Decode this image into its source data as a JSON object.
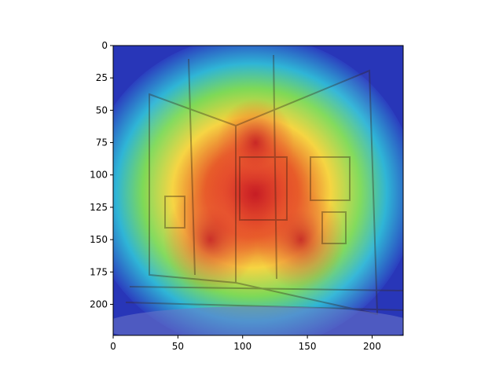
{
  "chart_data": {
    "type": "heatmap",
    "description_visible_text": "",
    "title": "",
    "xlabel": "",
    "ylabel": "",
    "xlim": [
      0,
      224
    ],
    "ylim": [
      224,
      0
    ],
    "x_ticks": [
      0,
      50,
      100,
      150,
      200
    ],
    "y_ticks": [
      0,
      25,
      50,
      75,
      100,
      125,
      150,
      175,
      200
    ],
    "colormap": "jet",
    "background_image": "building-facade",
    "hotspots": [
      {
        "x": 110,
        "y": 115,
        "intensity": 1.0
      },
      {
        "x": 75,
        "y": 150,
        "intensity": 0.85
      },
      {
        "x": 145,
        "y": 150,
        "intensity": 0.8
      },
      {
        "x": 110,
        "y": 75,
        "intensity": 0.7
      }
    ]
  }
}
